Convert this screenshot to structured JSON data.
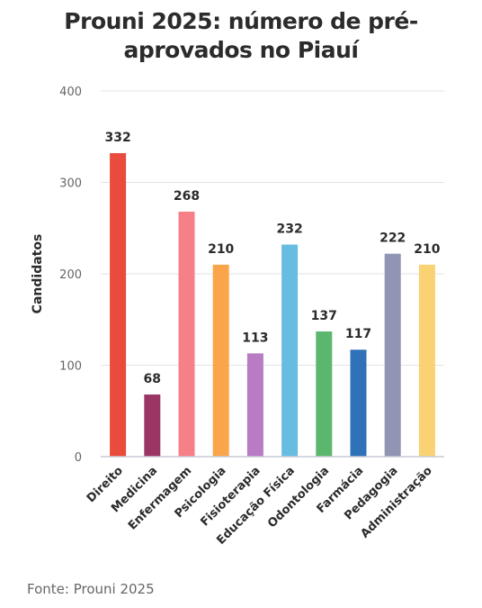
{
  "chart_data": {
    "type": "bar",
    "title_lines": [
      "Prouni 2025: número de pré-",
      "aprovados no Piauí"
    ],
    "ylabel": "Candidatos",
    "xlabel": "",
    "ylim": [
      0,
      400
    ],
    "yticks": [
      0,
      100,
      200,
      300,
      400
    ],
    "grid": true,
    "categories": [
      "Direito",
      "Medicina",
      "Enfermagem",
      "Psicologia",
      "Fisioterapia",
      "Educação Física",
      "Odontologia",
      "Farmácia",
      "Pedagogia",
      "Administração"
    ],
    "values": [
      332,
      68,
      268,
      210,
      113,
      232,
      137,
      117,
      222,
      210
    ],
    "colors": [
      "#e94b3c",
      "#9b3563",
      "#f77f88",
      "#fba54a",
      "#b87bc4",
      "#67bde1",
      "#5bb76e",
      "#2f72b8",
      "#8f95b3",
      "#f8d273"
    ]
  },
  "source": "Fonte: Prouni 2025"
}
